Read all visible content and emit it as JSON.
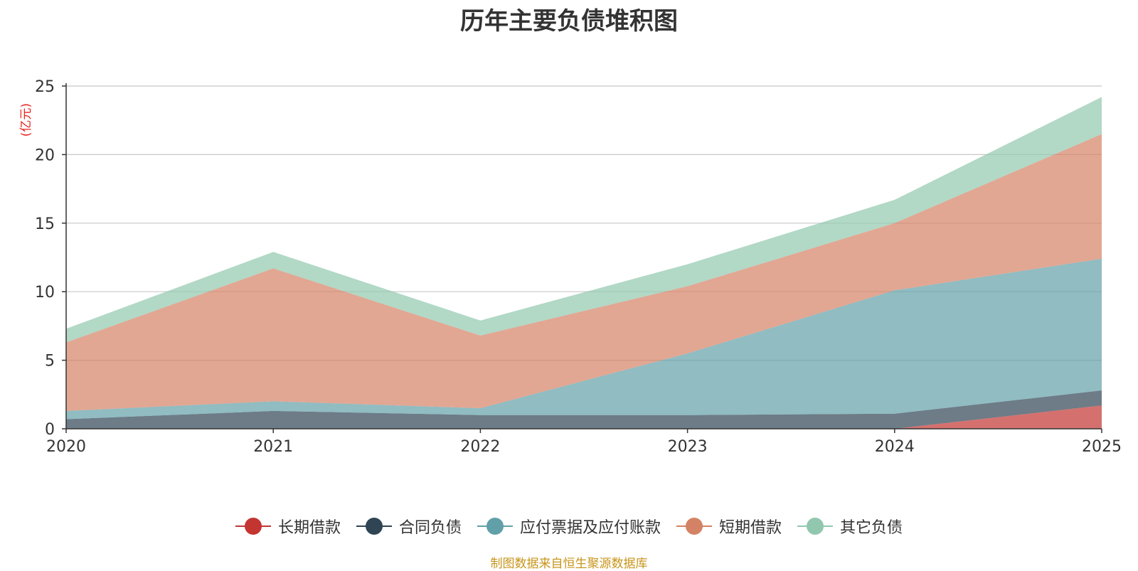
{
  "title": "历年主要负债堆积图",
  "unit": "(亿元)",
  "source": "制图数据来自恒生聚源数据库",
  "chart_data": {
    "type": "area",
    "stacked": true,
    "title": "历年主要负债堆积图",
    "ylabel": "(亿元)",
    "xlabel": "",
    "categories": [
      "2020",
      "2021",
      "2022",
      "2023",
      "2024",
      "2025"
    ],
    "ylim": [
      0,
      25
    ],
    "yticks": [
      0,
      5,
      10,
      15,
      20,
      25
    ],
    "grid": true,
    "legend_position": "bottom",
    "series": [
      {
        "name": "长期借款",
        "color": "#c23531",
        "values": [
          0,
          0,
          0,
          0,
          0,
          1.7
        ]
      },
      {
        "name": "合同负债",
        "color": "#2f4554",
        "values": [
          0.7,
          1.3,
          1.0,
          1.0,
          1.1,
          1.1
        ]
      },
      {
        "name": "应付票据及应付账款",
        "color": "#61a0a8",
        "values": [
          0.6,
          0.7,
          0.5,
          4.5,
          9.0,
          9.6
        ]
      },
      {
        "name": "短期借款",
        "color": "#d48265",
        "values": [
          5.0,
          9.7,
          5.3,
          4.9,
          4.9,
          9.1
        ]
      },
      {
        "name": "其它负债",
        "color": "#91c7ae",
        "values": [
          1.0,
          1.2,
          1.1,
          1.6,
          1.7,
          2.7
        ]
      }
    ]
  }
}
